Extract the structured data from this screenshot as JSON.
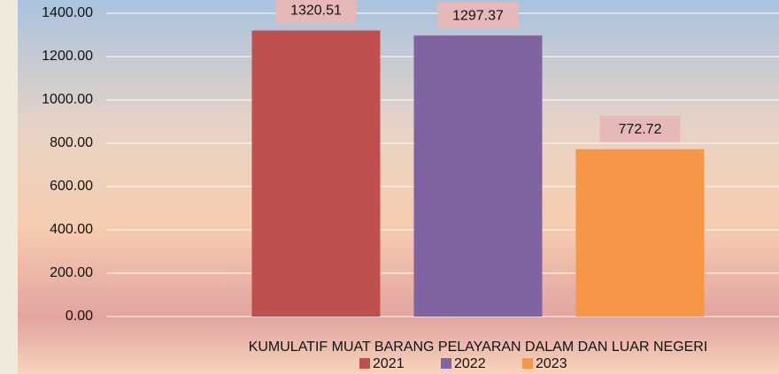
{
  "chart_data": {
    "type": "bar",
    "categories": [
      "KUMULATIF MUAT BARANG PELAYARAN DALAM DAN LUAR NEGERI"
    ],
    "series": [
      {
        "name": "2021",
        "color": "#c0504d",
        "values": [
          1320.51
        ]
      },
      {
        "name": "2022",
        "color": "#8064a2",
        "values": [
          1297.37
        ]
      },
      {
        "name": "2023",
        "color": "#f79646",
        "values": [
          772.72
        ]
      }
    ],
    "ylim": [
      0,
      1400
    ],
    "yticks": [
      {
        "value": 0,
        "label": "0.00"
      },
      {
        "value": 200,
        "label": "200.00"
      },
      {
        "value": 400,
        "label": "400.00"
      },
      {
        "value": 600,
        "label": "600.00"
      },
      {
        "value": 800,
        "label": "800.00"
      },
      {
        "value": 1000,
        "label": "1000.00"
      },
      {
        "value": 1200,
        "label": "1200.00"
      },
      {
        "value": 1400,
        "label": "1400.00"
      }
    ],
    "grid": true,
    "legend": "bottom"
  }
}
